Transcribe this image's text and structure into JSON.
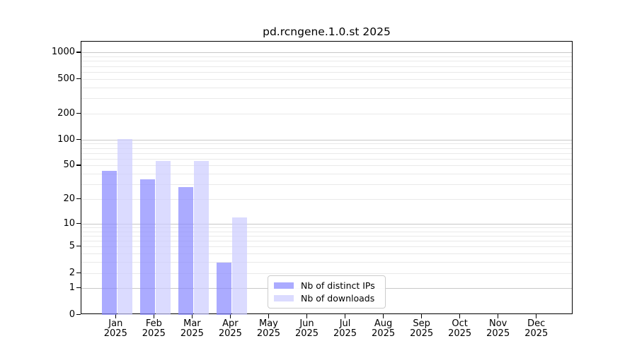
{
  "title": "pd.rcngene.1.0.st 2025",
  "chart_data": {
    "type": "bar",
    "title": "pd.rcngene.1.0.st 2025",
    "y_scale": "log1p",
    "grid": true,
    "categories": [
      "Jan",
      "Feb",
      "Mar",
      "Apr",
      "May",
      "Jun",
      "Jul",
      "Aug",
      "Sep",
      "Oct",
      "Nov",
      "Dec"
    ],
    "category_year": "2025",
    "yticks": [
      0,
      1,
      2,
      5,
      10,
      20,
      50,
      100,
      200,
      500,
      1000
    ],
    "ylim": [
      0,
      1350
    ],
    "legend_position": "lower center",
    "series": [
      {
        "name": "Nb of distinct IPs",
        "color": "#8888ff",
        "alpha": 0.7,
        "values": [
          44,
          35,
          28,
          3,
          0,
          0,
          0,
          0,
          0,
          0,
          0,
          0
        ]
      },
      {
        "name": "Nb of downloads",
        "color": "#ccccff",
        "alpha": 0.7,
        "values": [
          102,
          57,
          57,
          12,
          0,
          0,
          0,
          0,
          0,
          0,
          0,
          0
        ]
      }
    ]
  },
  "colors": {
    "major_grid": "#c8c8c8",
    "minor_grid": "#e9e9e9",
    "spine": "#000000",
    "text": "#000000"
  }
}
